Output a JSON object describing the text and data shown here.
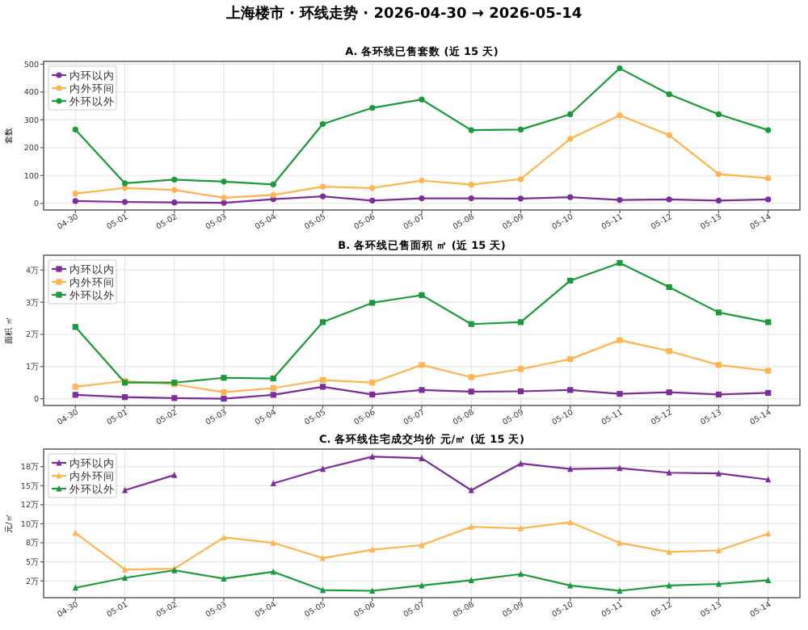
{
  "chart_data": [
    {
      "type": "other",
      "title": "上海楼市 · 环线走势 · 2026-04-30 → 2026-05-14"
    },
    {
      "type": "line",
      "title": "A. 各环线已售套数 (近 15 天)",
      "ylabel": "套数",
      "marker": "circle",
      "grid": true,
      "legend": "top left",
      "categories": [
        "04-30",
        "05-01",
        "05-02",
        "05-03",
        "05-04",
        "05-05",
        "05-06",
        "05-07",
        "05-08",
        "05-09",
        "05-10",
        "05-11",
        "05-12",
        "05-13",
        "05-14"
      ],
      "ylim": [
        -24,
        510
      ],
      "yticks": [
        0,
        100,
        200,
        300,
        400,
        500
      ],
      "series": [
        {
          "name": "内环以内",
          "color": "#7b2d9b",
          "values": [
            8,
            5,
            3,
            2,
            15,
            25,
            10,
            18,
            18,
            17,
            22,
            12,
            14,
            10,
            14
          ]
        },
        {
          "name": "内外环间",
          "color": "#ffb44f",
          "values": [
            35,
            55,
            48,
            20,
            30,
            60,
            55,
            82,
            67,
            87,
            232,
            316,
            245,
            105,
            90
          ]
        },
        {
          "name": "外环以外",
          "color": "#1a9a3a",
          "values": [
            265,
            72,
            85,
            78,
            68,
            285,
            343,
            373,
            263,
            265,
            320,
            485,
            392,
            320,
            263
          ]
        }
      ]
    },
    {
      "type": "line",
      "title": "B. 各环线已售面积 ㎡ (近 15 天)",
      "ylabel": "面积 ㎡",
      "marker": "square",
      "grid": true,
      "legend": "top left",
      "categories": [
        "04-30",
        "05-01",
        "05-02",
        "05-03",
        "05-04",
        "05-05",
        "05-06",
        "05-07",
        "05-08",
        "05-09",
        "05-10",
        "05-11",
        "05-12",
        "05-13",
        "05-14"
      ],
      "ylim": [
        -0.21,
        4.46
      ],
      "yticks": [
        0,
        {
          "value": 1,
          "label": "1万"
        },
        {
          "value": 2,
          "label": "2万"
        },
        {
          "value": 3,
          "label": "3万"
        },
        {
          "value": 4,
          "label": "4万"
        }
      ],
      "series": [
        {
          "name": "内环以内",
          "color": "#7b2d9b",
          "values": [
            0.12,
            0.05,
            0.02,
            0,
            0.12,
            0.37,
            0.13,
            0.27,
            0.22,
            0.23,
            0.27,
            0.15,
            0.2,
            0.13,
            0.18
          ]
        },
        {
          "name": "内外环间",
          "color": "#ffb44f",
          "values": [
            0.37,
            0.55,
            0.45,
            0.2,
            0.33,
            0.58,
            0.5,
            1.05,
            0.67,
            0.92,
            1.23,
            1.82,
            1.48,
            1.05,
            0.87
          ]
        },
        {
          "name": "外环以外",
          "color": "#1a9a3a",
          "values": [
            2.23,
            0.5,
            0.5,
            0.65,
            0.63,
            2.38,
            2.98,
            3.22,
            2.32,
            2.38,
            3.67,
            4.22,
            3.47,
            2.68,
            2.38
          ]
        }
      ]
    },
    {
      "type": "line",
      "title": "C. 各环线住宅成交均价 元/㎡ (近 15 天)",
      "ylabel": "元/㎡",
      "marker": "triangle",
      "grid": true,
      "legend": "top left",
      "categories": [
        "04-30",
        "05-01",
        "05-02",
        "05-03",
        "05-04",
        "05-05",
        "05-06",
        "05-07",
        "05-08",
        "05-09",
        "05-10",
        "05-11",
        "05-12",
        "05-13",
        "05-14"
      ],
      "ylim": [
        0.3,
        19.8
      ],
      "yticks": [
        {
          "value": 2.5,
          "label": "2万"
        },
        {
          "value": 5,
          "label": "5万"
        },
        {
          "value": 7.5,
          "label": "8万"
        },
        {
          "value": 10,
          "label": "10万"
        },
        {
          "value": 12.5,
          "label": "12万"
        },
        {
          "value": 15,
          "label": "15万"
        },
        {
          "value": 17.5,
          "label": "18万"
        }
      ],
      "series": [
        {
          "name": "内环以内",
          "color": "#7b2d9b",
          "values": [
            null,
            14.4,
            16.4,
            null,
            15.3,
            17.2,
            18.8,
            18.6,
            14.4,
            17.9,
            17.2,
            17.3,
            16.7,
            16.6,
            15.8
          ]
        },
        {
          "name": "内外环间",
          "color": "#ffb44f",
          "values": [
            8.8,
            4.0,
            4.1,
            8.2,
            7.5,
            5.5,
            6.6,
            7.2,
            9.6,
            9.4,
            10.2,
            7.5,
            6.3,
            6.5,
            8.7
          ]
        },
        {
          "name": "外环以外",
          "color": "#1a9a3a",
          "values": [
            1.6,
            2.9,
            3.9,
            2.8,
            3.7,
            1.3,
            1.2,
            1.9,
            2.6,
            3.4,
            1.9,
            1.2,
            1.9,
            2.1,
            2.6
          ]
        }
      ]
    }
  ]
}
